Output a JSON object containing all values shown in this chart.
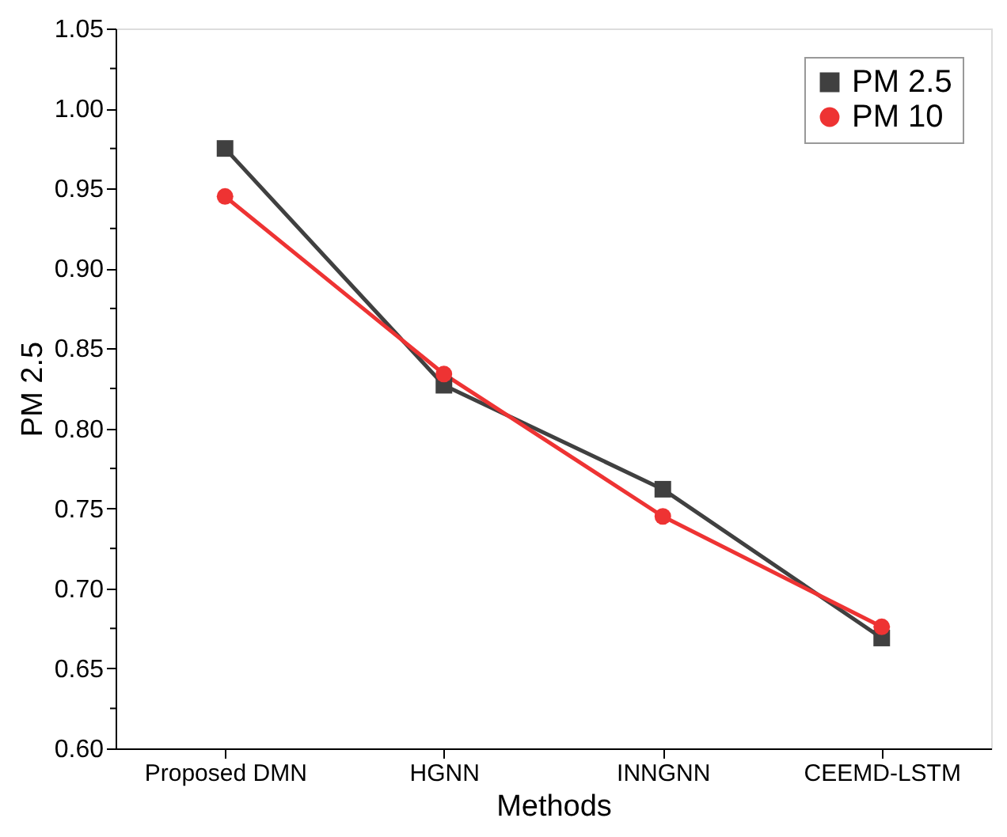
{
  "chart_data": {
    "type": "line",
    "xlabel": "Methods",
    "ylabel": "PM 2.5",
    "categories": [
      "Proposed DMN",
      "HGNN",
      "INNGNN",
      "CEEMD-LSTM"
    ],
    "series": [
      {
        "name": "PM 2.5",
        "color": "#404040",
        "marker": "square",
        "values": [
          0.975,
          0.827,
          0.762,
          0.669
        ]
      },
      {
        "name": "PM 10",
        "color": "#ee3333",
        "marker": "circle",
        "values": [
          0.945,
          0.834,
          0.745,
          0.676
        ]
      }
    ],
    "ylim": [
      0.6,
      1.05
    ],
    "yticks": [
      {
        "value": 0.6,
        "label": "0.60"
      },
      {
        "value": 0.625,
        "label": null
      },
      {
        "value": 0.65,
        "label": "0.65"
      },
      {
        "value": 0.675,
        "label": null
      },
      {
        "value": 0.7,
        "label": "0.70"
      },
      {
        "value": 0.725,
        "label": null
      },
      {
        "value": 0.75,
        "label": "0.75"
      },
      {
        "value": 0.775,
        "label": null
      },
      {
        "value": 0.8,
        "label": "0.80"
      },
      {
        "value": 0.825,
        "label": null
      },
      {
        "value": 0.85,
        "label": "0.85"
      },
      {
        "value": 0.875,
        "label": null
      },
      {
        "value": 0.9,
        "label": "0.90"
      },
      {
        "value": 0.925,
        "label": null
      },
      {
        "value": 0.95,
        "label": "0.95"
      },
      {
        "value": 0.975,
        "label": null
      },
      {
        "value": 1.0,
        "label": "1.00"
      },
      {
        "value": 1.025,
        "label": null
      },
      {
        "value": 1.05,
        "label": "1.05"
      }
    ],
    "grid": false,
    "legend": "top right",
    "line_style": "solid"
  }
}
